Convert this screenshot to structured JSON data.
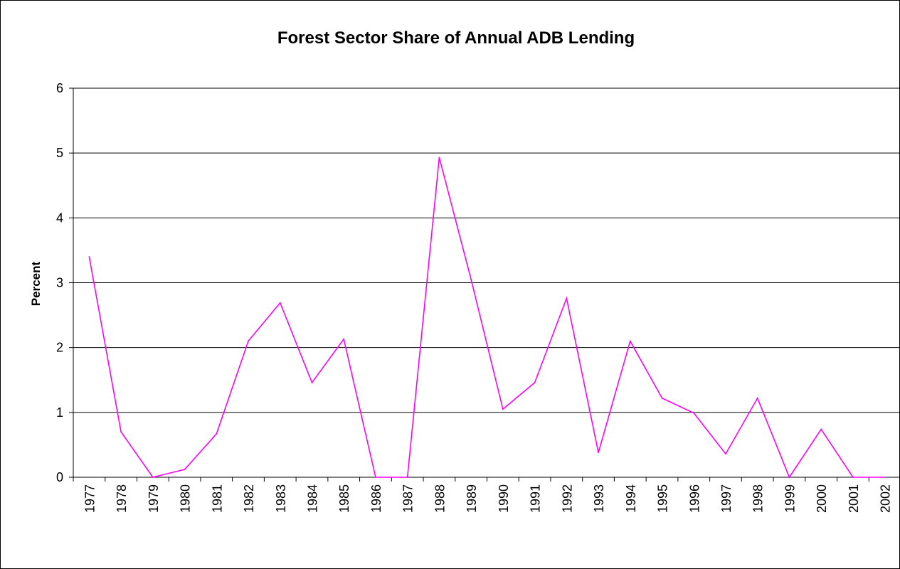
{
  "chart_data": {
    "type": "line",
    "title": "Forest Sector Share of Annual ADB Lending",
    "xlabel": "",
    "ylabel": "Percent",
    "ylim": [
      0,
      6
    ],
    "yticks": [
      0,
      1,
      2,
      3,
      4,
      5,
      6
    ],
    "grid": "horizontal",
    "legend": "none",
    "categories": [
      "1977",
      "1978",
      "1979",
      "1980",
      "1981",
      "1982",
      "1983",
      "1984",
      "1985",
      "1986",
      "1987",
      "1988",
      "1989",
      "1990",
      "1991",
      "1992",
      "1993",
      "1994",
      "1995",
      "1996",
      "1997",
      "1998",
      "1999",
      "2000",
      "2001",
      "2002"
    ],
    "series": [
      {
        "color": "#ff00ff",
        "values": [
          3.4,
          0.7,
          0.0,
          0.12,
          0.67,
          2.1,
          2.69,
          1.46,
          2.13,
          0.0,
          0.0,
          4.93,
          3.05,
          1.05,
          1.46,
          2.76,
          0.38,
          2.1,
          1.22,
          0.99,
          0.36,
          1.22,
          0.0,
          0.74,
          0.0,
          0.0
        ]
      }
    ]
  }
}
